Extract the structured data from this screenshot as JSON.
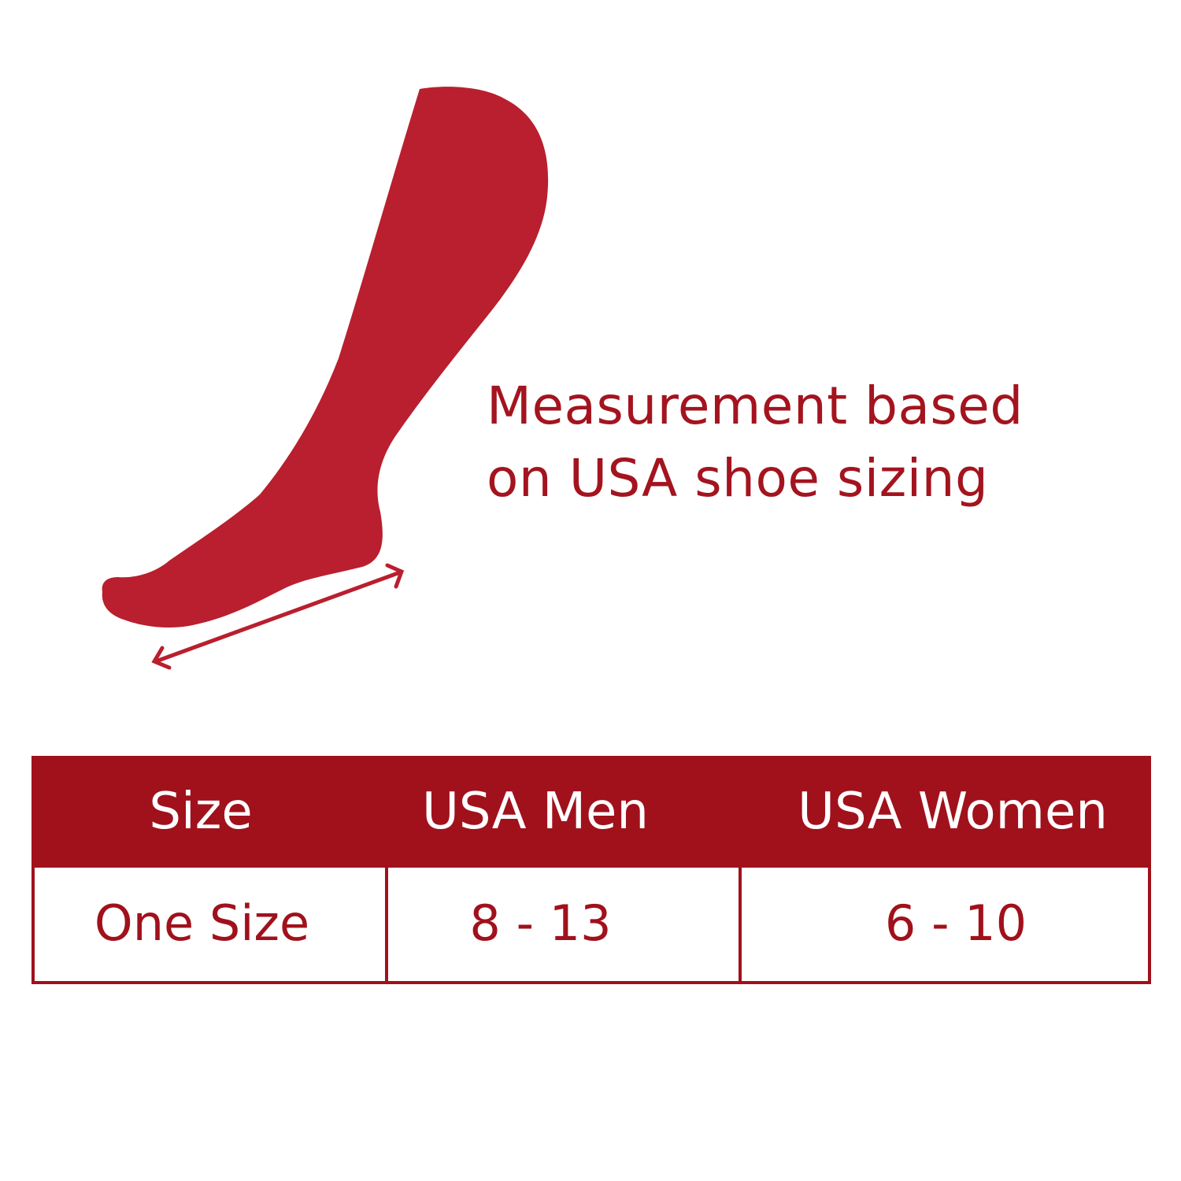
{
  "colors": {
    "foot": "#b91f2e",
    "header_bg": "#a0111c",
    "text": "#a3141f"
  },
  "illustration": {
    "icon": "foot-length-measurement-icon"
  },
  "caption": {
    "line1": "Measurement based",
    "line2": "on USA shoe sizing"
  },
  "size_table": {
    "headers": [
      "Size",
      "USA Men",
      "USA Women"
    ],
    "rows": [
      [
        "One Size",
        "8 - 13",
        "6 - 10"
      ]
    ]
  }
}
